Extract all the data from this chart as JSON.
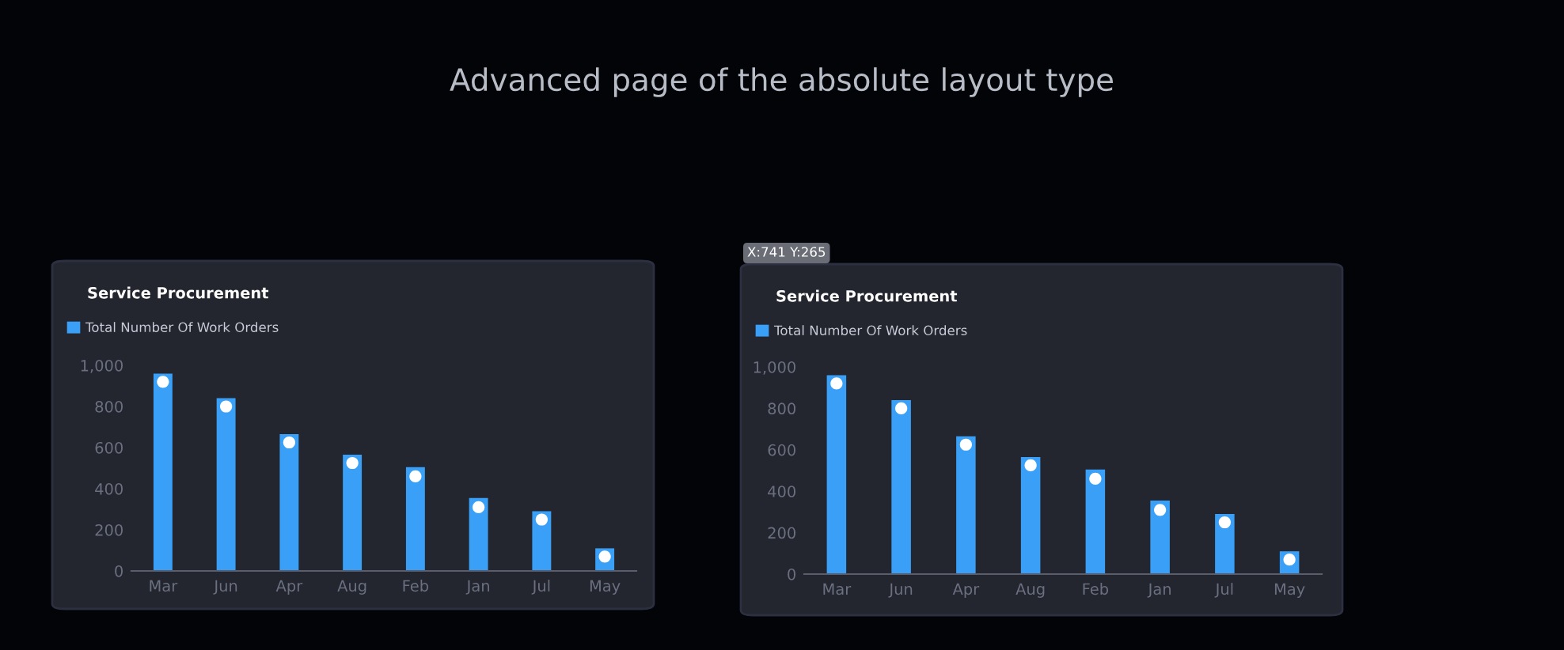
{
  "chart_data": [
    {
      "type": "bar",
      "title": "Service Procurement",
      "annotations": [
        "Advanced page of the absolute layout type"
      ],
      "categories": [
        "Mar",
        "Jun",
        "Apr",
        "Aug",
        "Feb",
        "Jan",
        "Jul",
        "May"
      ],
      "series": [
        {
          "name": "Total Number Of Work Orders",
          "color": "#3aa0f7",
          "values": [
            960,
            840,
            665,
            565,
            505,
            355,
            290,
            110
          ]
        },
        {
          "type": "scatter",
          "color": "#ffffff",
          "marker": "circle",
          "values": [
            920,
            800,
            625,
            525,
            460,
            310,
            250,
            70
          ]
        }
      ],
      "ylim": [
        0,
        1000
      ],
      "yticks": [
        0,
        200,
        400,
        600,
        800,
        {
          "value": 1000,
          "label": "1,000"
        }
      ],
      "grid": false,
      "legend": "top left"
    },
    {
      "type": "bar",
      "title": "Service Procurement",
      "annotations": [
        "X:741 Y:265"
      ],
      "categories": [
        "Mar",
        "Jun",
        "Apr",
        "Aug",
        "Feb",
        "Jan",
        "Jul",
        "May"
      ],
      "series": [
        {
          "name": "Total Number Of Work Orders",
          "color": "#3aa0f7",
          "values": [
            960,
            840,
            665,
            565,
            505,
            355,
            290,
            110
          ]
        },
        {
          "type": "scatter",
          "color": "#ffffff",
          "marker": "circle",
          "values": [
            920,
            800,
            625,
            525,
            460,
            310,
            250,
            70
          ]
        }
      ],
      "ylim": [
        0,
        1000
      ],
      "yticks": [
        0,
        200,
        400,
        600,
        800,
        {
          "value": 1000,
          "label": "1,000"
        }
      ],
      "grid": false,
      "legend": "top left"
    }
  ]
}
